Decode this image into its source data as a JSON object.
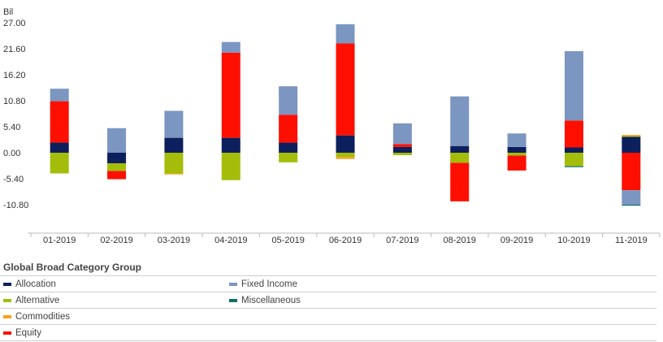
{
  "chart_data": {
    "type": "bar",
    "stacked": true,
    "unit_label": "Bil",
    "categories": [
      "01-2019",
      "02-2019",
      "03-2019",
      "04-2019",
      "05-2019",
      "06-2019",
      "07-2019",
      "08-2019",
      "09-2019",
      "10-2019",
      "11-2019"
    ],
    "ylim": [
      -13.0,
      27.0
    ],
    "yticks": [
      "27.00",
      "21.60",
      "16.20",
      "10.80",
      "5.40",
      "0.00",
      "-5.40",
      "-10.80"
    ],
    "ytick_values": [
      27.0,
      21.6,
      16.2,
      10.8,
      5.4,
      0.0,
      -5.4,
      -10.8
    ],
    "grid": false,
    "series": [
      {
        "name": "Allocation",
        "color": "#0d1f5c",
        "values": [
          2.1,
          -2.2,
          3.1,
          3.1,
          2.1,
          3.6,
          1.2,
          1.4,
          1.2,
          1.1,
          3.3
        ]
      },
      {
        "name": "Alternative",
        "color": "#a4bd0a",
        "values": [
          -4.3,
          -1.6,
          -4.3,
          -5.7,
          -2.0,
          -0.9,
          -0.5,
          -2.1,
          -0.6,
          -2.8,
          0.2
        ]
      },
      {
        "name": "Commodities",
        "color": "#f7a21b",
        "values": [
          0.0,
          0.0,
          -0.2,
          0.0,
          0.0,
          -0.4,
          0.0,
          0.0,
          0.0,
          0.0,
          0.2
        ]
      },
      {
        "name": "Equity",
        "color": "#ff0f00",
        "values": [
          8.6,
          -1.7,
          0.0,
          17.7,
          5.8,
          19.1,
          0.6,
          -8.0,
          -3.1,
          5.6,
          -7.8
        ]
      },
      {
        "name": "Fixed Income",
        "color": "#7b96c0",
        "values": [
          2.6,
          5.1,
          5.6,
          2.2,
          5.9,
          4.0,
          4.3,
          10.3,
          2.8,
          14.4,
          -3.0
        ]
      },
      {
        "name": "Miscellaneous",
        "color": "#0e6e6b",
        "values": [
          0.0,
          0.0,
          0.0,
          0.0,
          0.0,
          0.0,
          0.0,
          0.0,
          0.0,
          -0.2,
          -0.2
        ]
      }
    ],
    "legend_title": "Global Broad Category Group",
    "legend_position": "bottom",
    "legend_rows": [
      [
        "Allocation",
        "Fixed Income"
      ],
      [
        "Alternative",
        "Miscellaneous"
      ],
      [
        "Commodities",
        ""
      ],
      [
        "Equity",
        ""
      ]
    ]
  }
}
